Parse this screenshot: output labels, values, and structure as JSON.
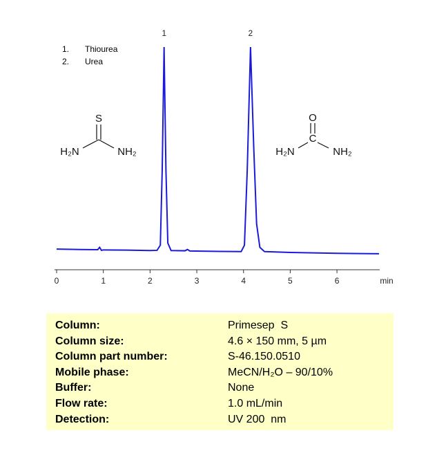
{
  "chart_data": {
    "type": "line",
    "x_label": "min",
    "x": [
      0,
      0.5,
      0.88,
      0.92,
      0.96,
      1.0,
      1.5,
      2.0,
      2.15,
      2.22,
      2.26,
      2.3,
      2.34,
      2.38,
      2.45,
      2.75,
      2.8,
      2.85,
      3.5,
      3.95,
      4.02,
      4.08,
      4.15,
      4.22,
      4.28,
      4.35,
      4.45,
      5,
      6,
      6.9
    ],
    "series": [
      {
        "color": "#1a1ad8",
        "values": [
          3.2,
          3.0,
          2.9,
          4.0,
          2.6,
          2.8,
          2.7,
          2.5,
          2.6,
          5,
          40,
          97.4,
          40,
          6,
          2.5,
          2.4,
          3.0,
          2.3,
          2.1,
          2.0,
          5,
          40,
          97.4,
          50,
          15,
          4,
          2.0,
          1.6,
          1.2,
          1.0
        ]
      }
    ],
    "xlim": [
      0,
      6.9
    ],
    "xticks": [
      0,
      1,
      2,
      3,
      4,
      5,
      6
    ],
    "ylim": [
      0,
      100
    ],
    "peak_labels": [
      {
        "text": "1",
        "x": 2.3
      },
      {
        "text": "2",
        "x": 4.15
      }
    ],
    "compounds": [
      {
        "number": "1.",
        "name": "Thiourea"
      },
      {
        "number": "2.",
        "name": "Urea"
      }
    ]
  },
  "structures": [
    {
      "top": "S",
      "left": "H₂N",
      "right": "NH₂"
    },
    {
      "top": "O",
      "center": "C",
      "left": "H₂N",
      "right": "NH₂"
    }
  ],
  "conditions": [
    [
      "Column:",
      "Primesep  S"
    ],
    [
      "Column size:",
      "4.6 × 150 mm, 5 µm"
    ],
    [
      "Column part number:",
      "S-46.150.0510"
    ],
    [
      "Mobile phase:",
      "MeCN/H₂O – 90/10%"
    ],
    [
      "Buffer:",
      "None"
    ],
    [
      "Flow rate:",
      "1.0 mL/min"
    ],
    [
      "Detection:",
      "UV 200  nm"
    ]
  ]
}
